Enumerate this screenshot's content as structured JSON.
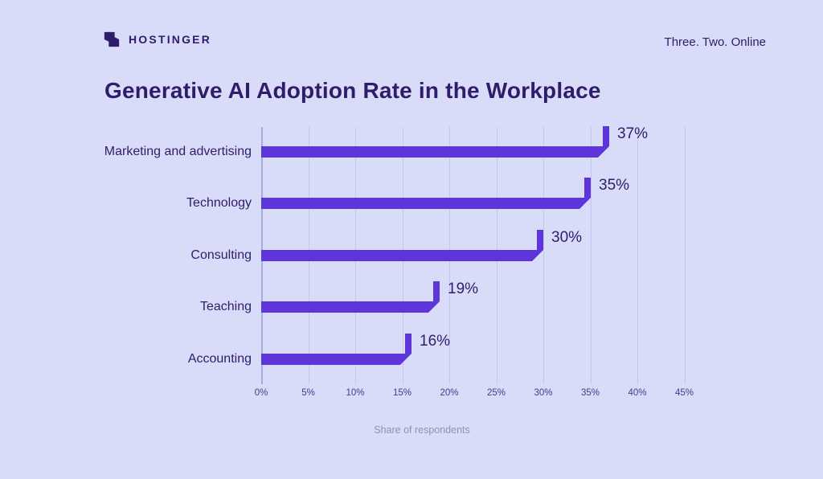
{
  "header": {
    "brand": "HOSTINGER",
    "tagline": "Three. Two. Online",
    "logo_icon": "hostinger-h-icon"
  },
  "chart_data": {
    "type": "bar",
    "orientation": "horizontal",
    "title": "Generative AI Adoption Rate in the Workplace",
    "categories": [
      "Marketing and advertising",
      "Technology",
      "Consulting",
      "Teaching",
      "Accounting"
    ],
    "values": [
      37,
      35,
      30,
      19,
      16
    ],
    "value_labels": [
      "37%",
      "35%",
      "30%",
      "19%",
      "16%"
    ],
    "xlabel": "Share of respondents",
    "x_tick_labels": [
      "0%",
      "5%",
      "10%",
      "15%",
      "20%",
      "25%",
      "30%",
      "35%",
      "40%",
      "45%"
    ],
    "xlim": [
      0,
      47
    ],
    "grid": "vertical-gridlines",
    "legend": "none"
  },
  "colors": {
    "background": "#D9DCF8",
    "bar": "#5D35D9",
    "text": "#2F1C6A",
    "gridline": "#C2C6F0",
    "axis_line": "#A6AADE",
    "muted_text": "#8F92AC"
  }
}
